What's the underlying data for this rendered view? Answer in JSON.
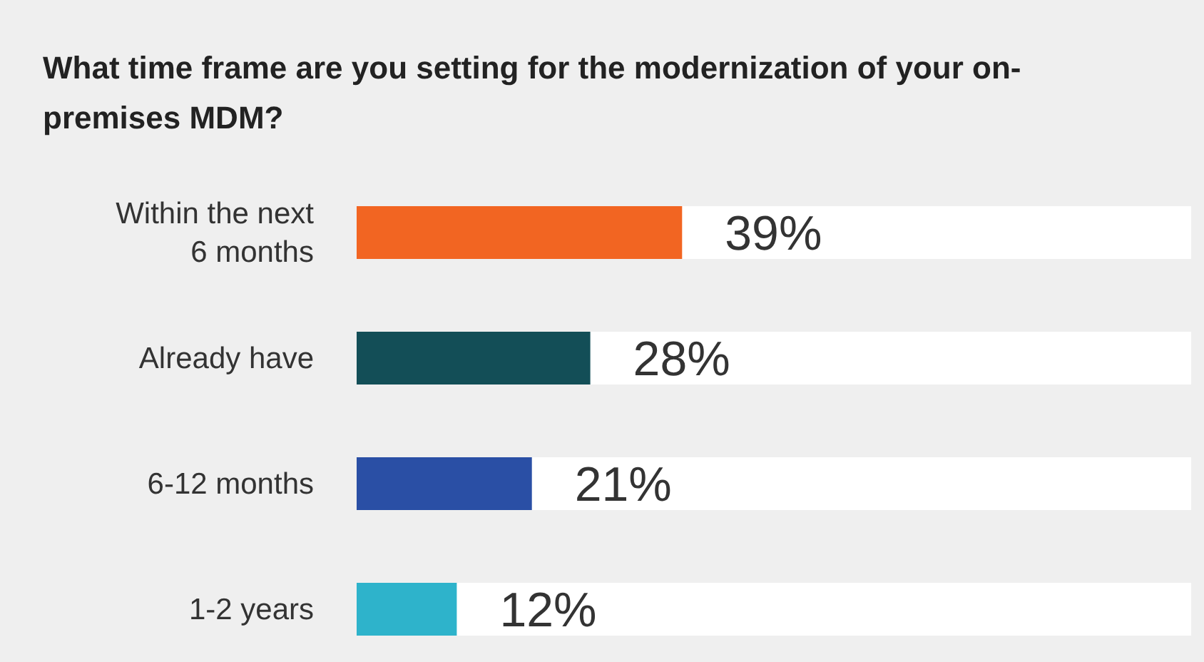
{
  "chart_data": {
    "type": "bar",
    "orientation": "horizontal",
    "title": "What time frame are you setting for the modernization of your on-premises MDM?",
    "categories": [
      "Within the next 6 months",
      "Already have",
      "6-12 months",
      "1-2 years"
    ],
    "values": [
      39,
      28,
      21,
      12
    ],
    "colors": [
      "#f26522",
      "#134e57",
      "#2a4fa5",
      "#2eb3cb"
    ],
    "value_labels": [
      "39%",
      "28%",
      "21%",
      "12%"
    ],
    "xlim": [
      0,
      100
    ],
    "tick_labels": "y"
  }
}
